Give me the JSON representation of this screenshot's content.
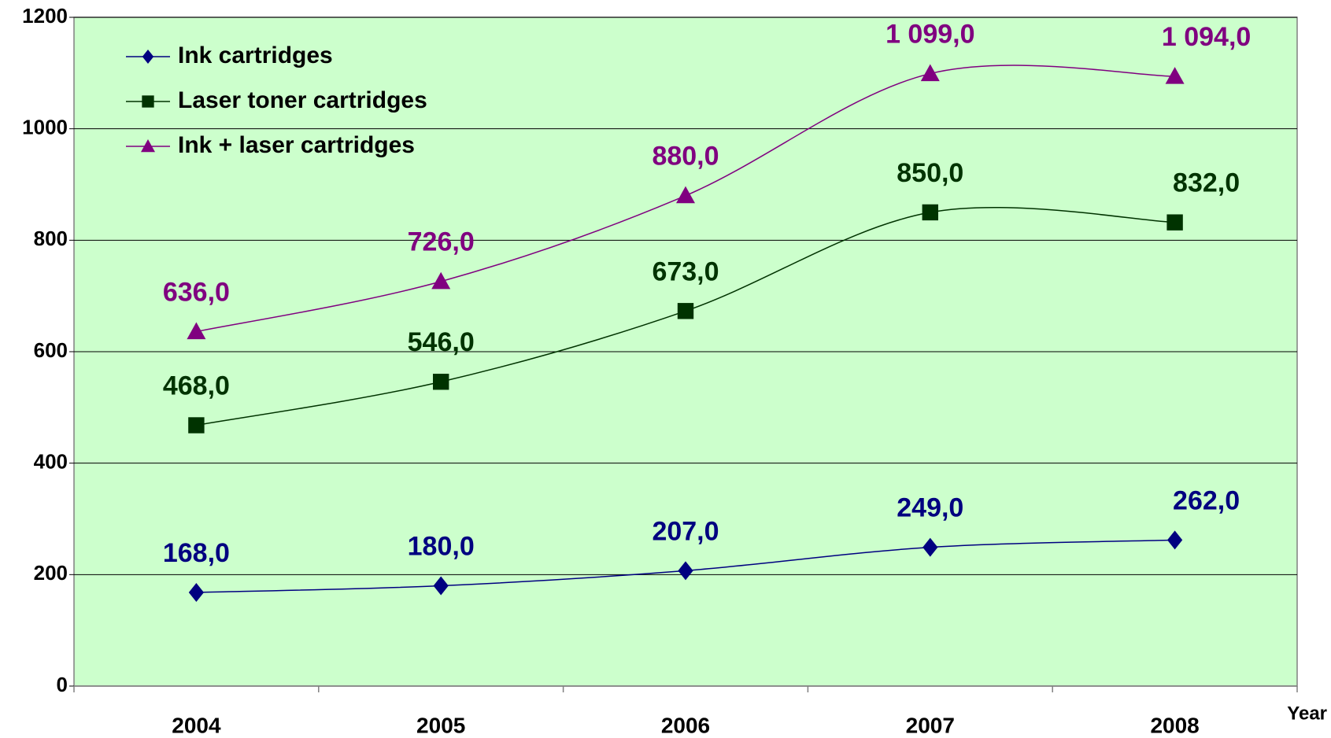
{
  "chart_data": {
    "type": "line",
    "x_label": "Year",
    "categories": [
      "2004",
      "2005",
      "2006",
      "2007",
      "2008"
    ],
    "series": [
      {
        "name": "Ink cartridges",
        "color": "#000080",
        "marker": "diamond",
        "values": [
          168,
          180,
          207,
          249,
          262
        ],
        "value_labels": [
          "168,0",
          "180,0",
          "207,0",
          "249,0",
          "262,0"
        ]
      },
      {
        "name": "Laser toner cartridges",
        "color": "#003300",
        "marker": "square",
        "values": [
          468,
          546,
          673,
          850,
          832
        ],
        "value_labels": [
          "468,0",
          "546,0",
          "673,0",
          "850,0",
          "832,0"
        ]
      },
      {
        "name": "Ink + laser cartridges",
        "color": "#800080",
        "marker": "triangle",
        "values": [
          636,
          726,
          880,
          1099,
          1094
        ],
        "value_labels": [
          "636,0",
          "726,0",
          "880,0",
          "1 099,0",
          "1 094,0"
        ]
      }
    ],
    "ylim": [
      0,
      1200
    ],
    "yticks": [
      0,
      200,
      400,
      600,
      800,
      1000,
      1200
    ],
    "grid": true,
    "background": "#ccffcc",
    "legend": "upper left"
  }
}
